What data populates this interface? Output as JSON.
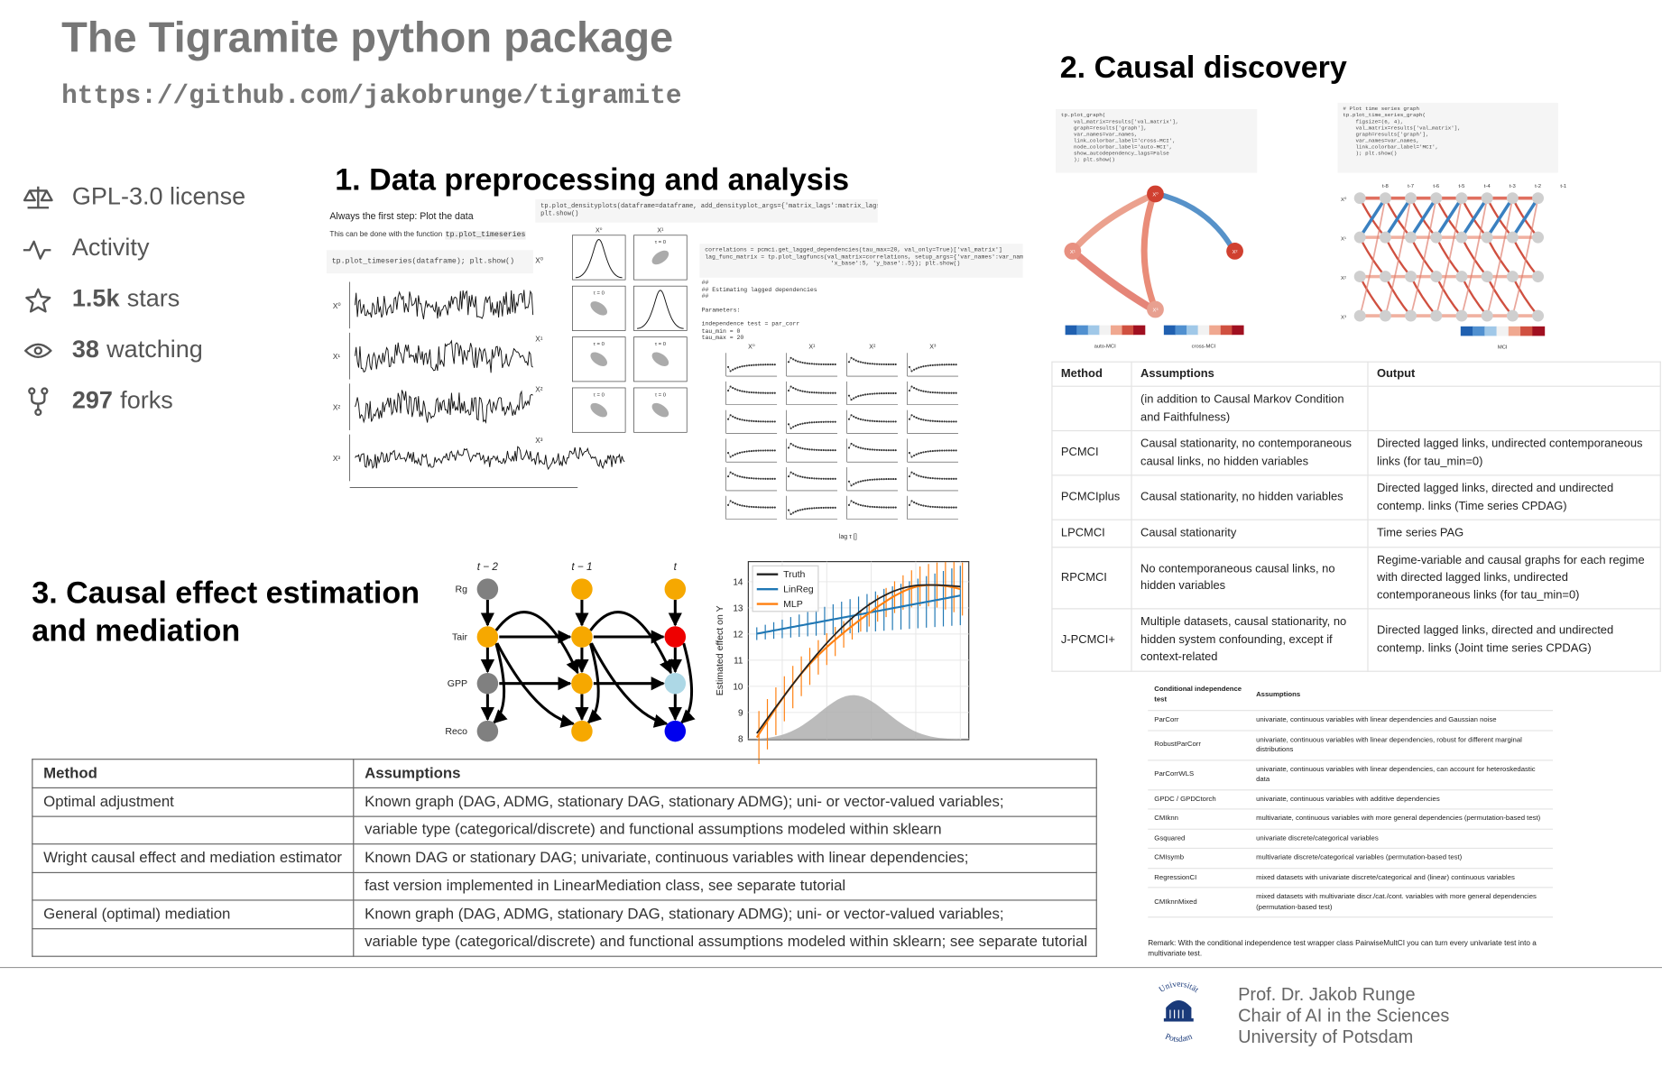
{
  "header": {
    "title": "The Tigramite python package",
    "url": "https://github.com/jakobrunge/tigramite"
  },
  "stats": [
    {
      "label": "GPL-3.0 license"
    },
    {
      "label": "Activity"
    },
    {
      "count": "1.5k",
      "label": "stars"
    },
    {
      "count": "38",
      "label": "watching"
    },
    {
      "count": "297",
      "label": "forks"
    }
  ],
  "sections": {
    "preprocessing": "1. Data preprocessing and analysis",
    "discovery": "2. Causal discovery",
    "effect": "3. Causal effect estimation and mediation"
  },
  "variables": [
    "X⁰",
    "X¹",
    "X²",
    "X³"
  ],
  "preprocessing": {
    "intro": "Always the first step: Plot the data",
    "note": "This can be done with the function",
    "function": "tp.plot_timeseries",
    "code_timeseries": "tp.plot_timeseries(dataframe); plt.show()",
    "code_density": "tp.plot_densityplots(dataframe=dataframe, add_densityplot_args={'matrix_lags':matrix_lags})\nplt.show()",
    "code_lagged": "correlations = pcmci.get_lagged_dependencies(tau_max=20, val_only=True)['val_matrix']\nlag_func_matrix = tp.plot_lagfuncs(val_matrix=correlations, setup_args={'var_names':var_names,\n                                    'x_base':5, 'y_base':.5}); plt.show()",
    "output": "##\n## Estimating lagged dependencies\n##\n\nParameters:\n\nindependence test = par_corr\ntau_min = 0\ntau_max = 20",
    "tau_label": "τ = 0",
    "lag_axis": "lag τ []"
  },
  "discovery": {
    "code_graph": "tp.plot_graph(\n    val_matrix=results['val_matrix'],\n    graph=results['graph'],\n    var_names=var_names,\n    link_colorbar_label='cross-MCI',\n    node_colorbar_label='auto-MCI',\n    show_autodependency_lags=False\n    ); plt.show()",
    "code_ts_graph": "# Plot time series graph\ntp.plot_time_series_graph(\n    figsize=(6, 4),\n    val_matrix=results['val_matrix'],\n    graph=results['graph'],\n    var_names=var_names,\n    link_colorbar_label='MCI',\n    ); plt.show()",
    "colorbars": [
      "auto-MCI",
      "cross-MCI",
      "MCI"
    ],
    "time_labels": [
      "t-8",
      "t-7",
      "t-6",
      "t-5",
      "t-4",
      "t-3",
      "t-2",
      "t-1",
      "t"
    ],
    "table": {
      "columns": [
        "Method",
        "Assumptions",
        "Output"
      ],
      "rows": [
        [
          null,
          "(in addition to Causal Markov Condition and Faithfulness)",
          null
        ],
        [
          "PCMCI",
          "Causal stationarity, no contemporaneous causal links, no hidden variables",
          "Directed lagged links, undirected contemporaneous links (for tau_min=0)"
        ],
        [
          "PCMCIplus",
          "Causal stationarity, no hidden variables",
          "Directed lagged links, directed and undirected contemp. links (Time series CPDAG)"
        ],
        [
          "LPCMCI",
          "Causal stationarity",
          "Time series PAG"
        ],
        [
          "RPCMCI",
          "No contemporaneous causal links, no hidden variables",
          "Regime-variable and causal graphs for each regime with directed lagged links, undirected contemporaneous links (for tau_min=0)"
        ],
        [
          "J-PCMCI+",
          "Multiple datasets, causal stationarity, no hidden system confounding, except if context-related",
          "Directed lagged links, directed and undirected contemp. links (Joint time series CPDAG)"
        ]
      ]
    },
    "ci_table": {
      "columns": [
        "Conditional independence test",
        "Assumptions"
      ],
      "rows": [
        [
          "ParCorr",
          "univariate, continuous variables with linear dependencies and Gaussian noise"
        ],
        [
          "RobustParCorr",
          "univariate, continuous variables with linear dependencies, robust for different marginal distributions"
        ],
        [
          "ParCorrWLS",
          "univariate, continuous variables with linear dependencies, can account for heteroskedastic data"
        ],
        [
          "GPDC / GPDCtorch",
          "univariate, continuous variables with additive dependencies"
        ],
        [
          "CMIknn",
          "multivariate, continuous variables with more general dependencies (permutation-based test)"
        ],
        [
          "Gsquared",
          "univariate discrete/categorical variables"
        ],
        [
          "CMIsymb",
          "multivariate discrete/categorical variables (permutation-based test)"
        ],
        [
          "RegressionCI",
          "mixed datasets with univariate discrete/categorical and (linear) continuous variables"
        ],
        [
          "CMIknnMixed",
          "mixed datasets with multivariate discr./cat./cont. variables with more general dependencies (permutation-based test)"
        ]
      ],
      "remark": "Remark: With the conditional independence test wrapper class PairwiseMultCI you can turn every univariate test into a multivariate test."
    }
  },
  "effect": {
    "time_labels": [
      "t − 2",
      "t − 1",
      "t"
    ],
    "variables": [
      "Rg",
      "Tair",
      "GPP",
      "Reco"
    ],
    "legend": [
      "Truth",
      "LinReg",
      "MLP"
    ],
    "y_label": "Estimated effect on Y",
    "yticks": [
      8,
      9,
      10,
      11,
      12,
      13,
      14
    ],
    "table": {
      "columns": [
        "Method",
        "Assumptions"
      ],
      "rows": [
        [
          "Optimal adjustment",
          "Known graph (DAG, ADMG, stationary DAG, stationary ADMG); uni- or vector-valued variables;"
        ],
        [
          null,
          "variable type (categorical/discrete) and functional assumptions modeled within sklearn"
        ],
        [
          "Wright causal effect and mediation estimator",
          "Known DAG or stationary DAG; univariate, continuous variables with linear dependencies;"
        ],
        [
          null,
          "fast version implemented in LinearMediation class, see separate tutorial"
        ],
        [
          "General (optimal) mediation",
          "Known graph (DAG, ADMG, stationary DAG, stationary ADMG); uni- or vector-valued variables;"
        ],
        [
          null,
          "variable type (categorical/discrete) and functional assumptions modeled within sklearn; see separate tutorial"
        ]
      ]
    }
  },
  "footer": {
    "logo": {
      "top": "Universität",
      "bottom": "Potsdam"
    },
    "lines": [
      "Prof. Dr. Jakob Runge",
      "Chair of AI in the Sciences",
      "University of Potsdam"
    ]
  }
}
